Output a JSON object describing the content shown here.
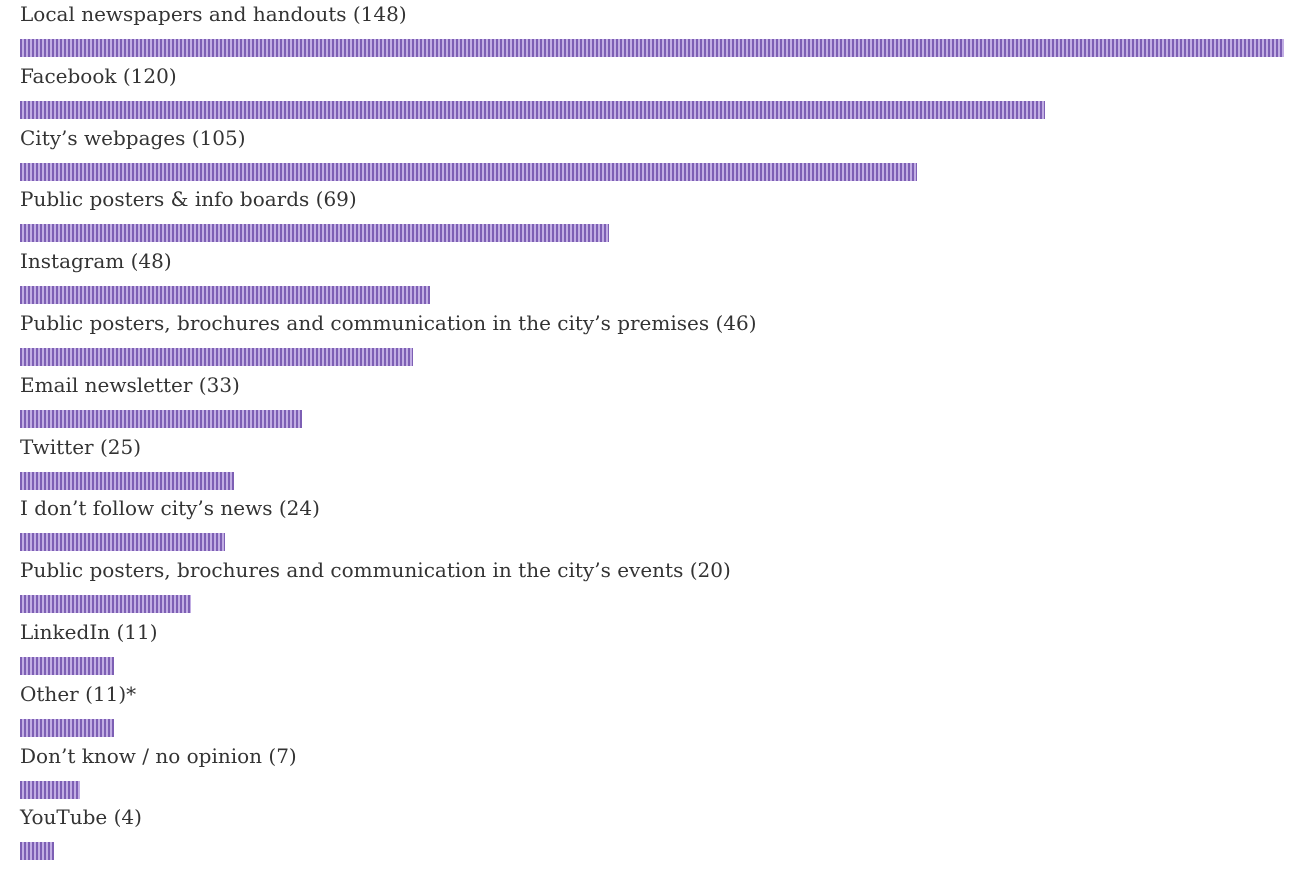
{
  "chart_data": {
    "type": "bar",
    "orientation": "horizontal",
    "categories": [
      "Local newspapers and handouts (148)",
      "Facebook (120)",
      "City’s webpages (105)",
      "Public posters & info boards (69)",
      "Instagram (48)",
      "Public posters, brochures and communication in the city’s premises (46)",
      "Email newsletter (33)",
      "Twitter (25)",
      "I don’t follow city’s news (24)",
      "Public posters, brochures and communication in the city’s events (20)",
      "LinkedIn (11)",
      "Other (11)*",
      "Don’t know / no opinion (7)",
      "YouTube (4)"
    ],
    "values": [
      148,
      120,
      105,
      69,
      48,
      46,
      33,
      25,
      24,
      20,
      11,
      11,
      7,
      4
    ],
    "title": "",
    "xlabel": "",
    "ylabel": "",
    "xlim": [
      0,
      148
    ],
    "grid": false,
    "legend": "none",
    "bar_color": "#9b7ec9"
  }
}
